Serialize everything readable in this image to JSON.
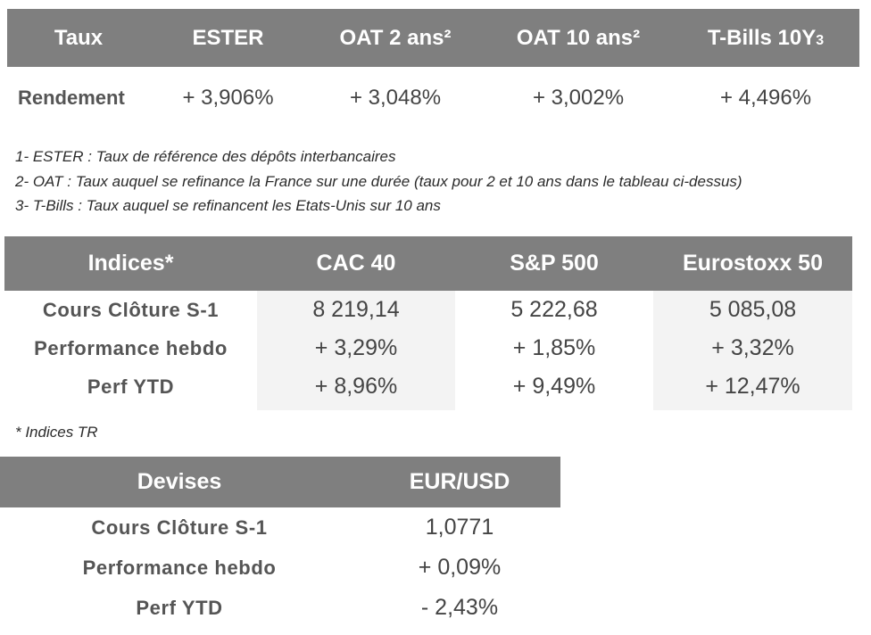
{
  "taux": {
    "headers": [
      "Taux",
      "ESTER",
      "OAT 2 ans²",
      "OAT 10 ans²",
      "T-Bills 10Y",
      "3"
    ],
    "row_label": "Rendement",
    "values": [
      "+ 3,906%",
      "+ 3,048%",
      "+ 3,002%",
      "+ 4,496%"
    ]
  },
  "notes": [
    "1- ESTER : Taux de référence des dépôts interbancaires",
    "2- OAT : Taux auquel se refinance la France sur une durée (taux pour 2 et 10 ans dans le tableau ci-dessus)",
    "3- T-Bills : Taux auquel se refinancent les Etats-Unis sur 10 ans"
  ],
  "indices": {
    "headers": [
      "Indices*",
      "CAC 40",
      "S&P 500",
      "Eurostoxx 50"
    ],
    "rows": [
      {
        "label": "Cours Clôture S-1",
        "values": [
          "8 219,14",
          "5 222,68",
          "5 085,08"
        ]
      },
      {
        "label": "Performance hebdo",
        "values": [
          "+ 3,29%",
          "+ 1,85%",
          "+ 3,32%"
        ]
      },
      {
        "label": "Perf YTD",
        "values": [
          "+ 8,96%",
          "+ 9,49%",
          "+ 12,47%"
        ]
      }
    ],
    "note": "* Indices TR"
  },
  "devises": {
    "headers": [
      "Devises",
      "EUR/USD"
    ],
    "rows": [
      {
        "label": "Cours Clôture S-1",
        "value": "1,0771"
      },
      {
        "label": "Performance hebdo",
        "value": "+ 0,09%"
      },
      {
        "label": "Perf YTD",
        "value": "- 2,43%"
      }
    ]
  },
  "colors": {
    "header_bg": "#7f7f7f",
    "header_text": "#ffffff",
    "body_text": "#444444",
    "cell_bg_alt": "#f3f3f3"
  }
}
